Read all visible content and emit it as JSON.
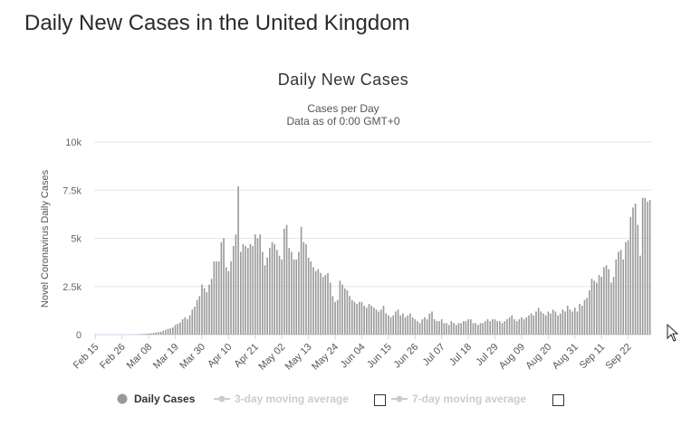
{
  "page": {
    "title": "Daily New Cases in the United Kingdom"
  },
  "chart_data": {
    "type": "bar",
    "title": "Daily New Cases",
    "subtitle_line1": "Cases per Day",
    "subtitle_line2": "Data as of 0:00 GMT+0",
    "ylabel": "Novel Coronavirus Daily Cases",
    "xlabel": "",
    "ylim": [
      0,
      10000
    ],
    "y_ticks": [
      0,
      2500,
      5000,
      7500,
      10000
    ],
    "y_tick_labels": [
      "0",
      "2.5k",
      "5k",
      "7.5k",
      "10k"
    ],
    "start_date": "Feb 15",
    "x_tick_labels": [
      "Feb 15",
      "Feb 26",
      "Mar 08",
      "Mar 19",
      "Mar 30",
      "Apr 10",
      "Apr 21",
      "May 02",
      "May 13",
      "May 24",
      "Jun 04",
      "Jun 15",
      "Jun 26",
      "Jul 07",
      "Jul 18",
      "Jul 29",
      "Aug 09",
      "Aug 20",
      "Aug 31",
      "Sep 11",
      "Sep 22"
    ],
    "x_tick_interval_days": 11,
    "grid": true,
    "bar_color": "#999999",
    "series": [
      {
        "name": "Daily Cases",
        "values": [
          0,
          0,
          0,
          0,
          0,
          0,
          0,
          0,
          0,
          0,
          0,
          0,
          0,
          0,
          10,
          12,
          5,
          10,
          20,
          30,
          40,
          50,
          60,
          70,
          90,
          110,
          130,
          150,
          200,
          250,
          300,
          330,
          380,
          500,
          560,
          630,
          800,
          900,
          800,
          1000,
          1300,
          1450,
          1800,
          2000,
          2600,
          2400,
          2200,
          2600,
          2900,
          3800,
          3800,
          3800,
          4800,
          5000,
          3500,
          3300,
          3800,
          4600,
          5200,
          7700,
          4300,
          4700,
          4600,
          4500,
          4700,
          4600,
          5200,
          5000,
          5200,
          4300,
          3600,
          4000,
          4500,
          4800,
          4700,
          4400,
          4100,
          3900,
          5500,
          5700,
          4500,
          4300,
          3900,
          3900,
          4300,
          5600,
          4800,
          4700,
          4000,
          3800,
          3500,
          3300,
          3400,
          3200,
          3000,
          3100,
          3200,
          2700,
          2000,
          1700,
          1800,
          2800,
          2600,
          2400,
          2300,
          2000,
          1800,
          1700,
          1600,
          1700,
          1700,
          1500,
          1400,
          1600,
          1500,
          1400,
          1300,
          1200,
          1300,
          1500,
          1100,
          1000,
          900,
          1000,
          1200,
          1300,
          1000,
          1100,
          900,
          1000,
          1100,
          900,
          800,
          700,
          600,
          800,
          900,
          800,
          1100,
          1200,
          800,
          700,
          700,
          800,
          600,
          600,
          500,
          700,
          600,
          500,
          600,
          600,
          700,
          700,
          800,
          800,
          600,
          600,
          500,
          600,
          600,
          700,
          800,
          700,
          800,
          800,
          700,
          700,
          600,
          700,
          800,
          900,
          1000,
          800,
          700,
          800,
          900,
          800,
          900,
          1000,
          1100,
          1000,
          1200,
          1400,
          1200,
          1100,
          1000,
          1200,
          1100,
          1300,
          1200,
          1000,
          1100,
          1300,
          1200,
          1500,
          1300,
          1200,
          1400,
          1200,
          1600,
          1500,
          1800,
          1900,
          2300,
          2900,
          2800,
          2700,
          3100,
          3000,
          3500,
          3600,
          3400,
          2700,
          3000,
          3900,
          4300,
          4400,
          3900,
          4800,
          4900,
          6100,
          6600,
          6800,
          5700,
          4100,
          7100,
          7100,
          6900,
          7000
        ]
      }
    ],
    "legend": {
      "items": [
        {
          "name": "Daily Cases",
          "active": true,
          "color": "#999999"
        },
        {
          "name": "3-day moving average",
          "active": false,
          "color": "#cccccc"
        },
        {
          "name": "7-day moving average",
          "active": false,
          "color": "#cccccc"
        }
      ]
    }
  },
  "icons": {
    "legend_marker": "circle-icon",
    "cursor": "mouse-pointer-icon",
    "checkbox": "checkbox-icon"
  }
}
